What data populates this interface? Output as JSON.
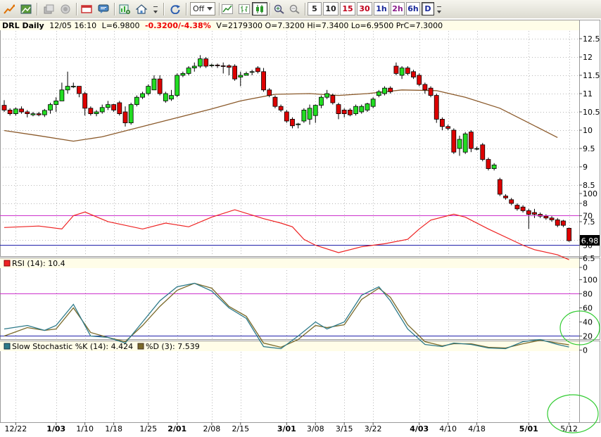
{
  "toolbar": {
    "period_dropdown": "Off",
    "timeframes": [
      "5",
      "10",
      "15",
      "30",
      "1h",
      "2h",
      "6h",
      "D"
    ],
    "selected_timeframe": "D"
  },
  "header": {
    "symbol": "DRL Daily",
    "datetime": "12/05 16:10",
    "last": "L=6.9800",
    "change": "-0.3200/-4.38%",
    "rest": "V=2179300 O=7.3200 Hi=7.3400 Lo=6.9500 PrC=7.3000"
  },
  "colors": {
    "up": "#22dd22",
    "down": "#dd0000",
    "ma": "#8b5a2b",
    "rsi": "#ee2222",
    "overbought": "#cc33cc",
    "oversold": "#2222aa",
    "stoch_k": "#2d7a8a",
    "stoch_d": "#7a6a2a",
    "highlight": "#33cc33"
  },
  "chart_data": [
    {
      "type": "candlestick",
      "title": "DRL Daily",
      "y_ticks": [
        "12.5",
        "12",
        "11.5",
        "11",
        "10.5",
        "10",
        "9.5",
        "9",
        "8.5",
        "8",
        "7.5",
        "7",
        "6.5"
      ],
      "ylim": [
        6.5,
        12.5
      ],
      "last_price_label": "6.98",
      "x_tick_labels": [
        "12/22",
        "1/03",
        "1/10",
        "1/18",
        "1/25",
        "2/01",
        "2/08",
        "2/15",
        "3/01",
        "3/08",
        "3/15",
        "3/22",
        "4/03",
        "4/10",
        "4/18",
        "5/01",
        "5/12"
      ],
      "bold_x_labels": [
        "1/03",
        "2/01",
        "3/01",
        "4/03",
        "5/01"
      ],
      "candles": [
        [
          10.68,
          10.82,
          10.5,
          10.55
        ],
        [
          10.55,
          10.6,
          10.4,
          10.45
        ],
        [
          10.45,
          10.62,
          10.4,
          10.58
        ],
        [
          10.58,
          10.65,
          10.45,
          10.5
        ],
        [
          10.5,
          10.55,
          10.35,
          10.45
        ],
        [
          10.42,
          10.5,
          10.38,
          10.45
        ],
        [
          10.45,
          10.5,
          10.38,
          10.42
        ],
        [
          10.42,
          10.58,
          10.36,
          10.54
        ],
        [
          10.55,
          10.75,
          10.45,
          10.7
        ],
        [
          10.7,
          10.9,
          10.5,
          10.8
        ],
        [
          10.8,
          11.3,
          10.8,
          11.1
        ],
        [
          11.1,
          11.6,
          11.0,
          11.2
        ],
        [
          11.2,
          11.3,
          11.15,
          11.2
        ],
        [
          11.2,
          11.2,
          10.9,
          11.0
        ],
        [
          11.0,
          11.05,
          10.4,
          10.6
        ],
        [
          10.6,
          10.65,
          10.4,
          10.45
        ],
        [
          10.45,
          10.55,
          10.38,
          10.5
        ],
        [
          10.5,
          10.7,
          10.45,
          10.62
        ],
        [
          10.62,
          10.8,
          10.55,
          10.7
        ],
        [
          10.7,
          10.72,
          10.5,
          10.55
        ],
        [
          10.75,
          10.8,
          10.4,
          10.45
        ],
        [
          10.5,
          10.65,
          10.1,
          10.2
        ],
        [
          10.2,
          10.75,
          10.15,
          10.7
        ],
        [
          10.7,
          10.95,
          10.65,
          10.9
        ],
        [
          10.9,
          11.05,
          10.85,
          11.0
        ],
        [
          11.0,
          11.25,
          10.95,
          11.2
        ],
        [
          11.1,
          11.5,
          11.1,
          11.4
        ],
        [
          11.4,
          11.5,
          10.95,
          11.0
        ],
        [
          10.8,
          11.05,
          10.75,
          11.0
        ],
        [
          10.85,
          11.1,
          10.8,
          10.95
        ],
        [
          10.95,
          11.55,
          10.9,
          11.5
        ],
        [
          11.5,
          11.6,
          11.45,
          11.55
        ],
        [
          11.55,
          11.75,
          11.5,
          11.7
        ],
        [
          11.7,
          11.85,
          11.6,
          11.75
        ],
        [
          11.75,
          12.05,
          11.7,
          11.95
        ],
        [
          11.95,
          12.0,
          11.7,
          11.75
        ],
        [
          11.78,
          11.82,
          11.72,
          11.78
        ],
        [
          11.78,
          11.82,
          11.7,
          11.76
        ],
        [
          11.76,
          11.85,
          11.55,
          11.75
        ],
        [
          11.76,
          11.8,
          11.5,
          11.72
        ],
        [
          11.75,
          11.8,
          11.35,
          11.4
        ],
        [
          11.45,
          11.6,
          11.2,
          11.5
        ],
        [
          11.5,
          11.6,
          11.5,
          11.55
        ],
        [
          11.6,
          11.65,
          11.5,
          11.6
        ],
        [
          11.7,
          11.75,
          11.55,
          11.6
        ],
        [
          11.6,
          11.7,
          11.05,
          11.1
        ],
        [
          11.1,
          11.15,
          10.9,
          10.95
        ],
        [
          10.9,
          10.95,
          10.6,
          10.65
        ],
        [
          10.65,
          10.7,
          10.5,
          10.55
        ],
        [
          10.5,
          10.55,
          10.2,
          10.25
        ],
        [
          10.3,
          10.35,
          10.05,
          10.12
        ],
        [
          10.15,
          10.2,
          10.05,
          10.17
        ],
        [
          10.25,
          10.6,
          10.2,
          10.55
        ],
        [
          10.3,
          10.7,
          10.15,
          10.6
        ],
        [
          10.4,
          10.7,
          10.2,
          10.68
        ],
        [
          10.68,
          10.95,
          10.6,
          10.9
        ],
        [
          10.9,
          11.1,
          10.85,
          11.0
        ],
        [
          10.95,
          11.0,
          10.7,
          10.75
        ],
        [
          10.7,
          10.75,
          10.3,
          10.45
        ],
        [
          10.55,
          10.6,
          10.35,
          10.45
        ],
        [
          10.55,
          10.6,
          10.38,
          10.42
        ],
        [
          10.45,
          10.7,
          10.4,
          10.65
        ],
        [
          10.5,
          10.7,
          10.45,
          10.65
        ],
        [
          10.55,
          10.75,
          10.5,
          10.72
        ],
        [
          10.65,
          10.9,
          10.6,
          10.85
        ],
        [
          10.95,
          11.1,
          10.9,
          11.05
        ],
        [
          11.0,
          11.2,
          10.95,
          11.15
        ],
        [
          11.15,
          11.2,
          11.0,
          11.05
        ],
        [
          11.75,
          11.85,
          11.5,
          11.55
        ],
        [
          11.5,
          11.75,
          11.4,
          11.7
        ],
        [
          11.7,
          11.75,
          11.5,
          11.55
        ],
        [
          11.6,
          11.65,
          11.4,
          11.45
        ],
        [
          11.5,
          11.55,
          11.2,
          11.25
        ],
        [
          11.25,
          11.3,
          11.0,
          11.1
        ],
        [
          11.15,
          11.2,
          10.9,
          10.95
        ],
        [
          10.95,
          11.0,
          10.2,
          10.3
        ],
        [
          10.3,
          10.35,
          10.0,
          10.1
        ],
        [
          10.1,
          10.15,
          10.0,
          10.05
        ],
        [
          10.0,
          10.05,
          9.35,
          9.4
        ],
        [
          9.5,
          9.85,
          9.3,
          9.75
        ],
        [
          9.4,
          9.95,
          9.35,
          9.9
        ],
        [
          9.95,
          10.0,
          9.4,
          9.5
        ],
        [
          9.5,
          9.55,
          9.45,
          9.5
        ],
        [
          9.6,
          9.65,
          9.15,
          9.2
        ],
        [
          9.2,
          9.25,
          8.9,
          8.95
        ],
        [
          8.95,
          9.1,
          8.9,
          9.05
        ],
        [
          8.65,
          8.7,
          8.2,
          8.25
        ],
        [
          8.2,
          8.25,
          8.1,
          8.15
        ],
        [
          8.1,
          8.15,
          7.95,
          8.0
        ],
        [
          7.95,
          8.0,
          7.8,
          7.85
        ],
        [
          7.9,
          7.95,
          7.75,
          7.8
        ],
        [
          7.8,
          7.85,
          7.3,
          7.7
        ],
        [
          7.75,
          7.85,
          7.6,
          7.7
        ],
        [
          7.7,
          7.75,
          7.6,
          7.65
        ],
        [
          7.65,
          7.7,
          7.55,
          7.6
        ],
        [
          7.6,
          7.65,
          7.5,
          7.55
        ],
        [
          7.55,
          7.6,
          7.35,
          7.4
        ],
        [
          7.52,
          7.55,
          7.35,
          7.4
        ],
        [
          7.32,
          7.34,
          6.95,
          6.98
        ]
      ],
      "ma": [
        [
          0,
          9.99
        ],
        [
          6,
          9.85
        ],
        [
          12,
          9.7
        ],
        [
          17,
          9.82
        ],
        [
          24,
          10.1
        ],
        [
          30,
          10.34
        ],
        [
          36,
          10.58
        ],
        [
          41,
          10.8
        ],
        [
          47,
          10.98
        ],
        [
          53,
          11.0
        ],
        [
          58,
          10.95
        ],
        [
          63,
          11.0
        ],
        [
          69,
          11.1
        ],
        [
          75,
          11.08
        ],
        [
          80,
          10.9
        ],
        [
          86,
          10.6
        ],
        [
          91,
          10.2
        ],
        [
          96,
          9.8
        ]
      ]
    },
    {
      "type": "line",
      "title": "RSI (14): 10.4",
      "ylim": [
        0,
        100
      ],
      "y_ticks": [
        "100",
        "70",
        "30",
        "0"
      ],
      "y_tick_values": [
        100,
        70,
        30,
        0
      ],
      "reference_lines": [
        70,
        30
      ],
      "x": [
        0,
        6,
        10,
        12,
        14,
        18,
        24,
        28,
        32,
        36,
        40,
        45,
        48,
        50,
        52,
        54,
        58,
        62,
        66,
        70,
        72,
        74,
        78,
        80,
        84,
        90,
        92,
        96,
        98
      ],
      "values": [
        54,
        56,
        52,
        70,
        75,
        62,
        52,
        60,
        55,
        68,
        78,
        66,
        60,
        55,
        38,
        30,
        20,
        28,
        32,
        38,
        52,
        64,
        72,
        68,
        52,
        30,
        24,
        17,
        10.4
      ]
    },
    {
      "type": "line",
      "title": "Slow Stochastic %K (14): 4.424",
      "d_title": "%D (3): 7.539",
      "ylim": [
        0,
        100
      ],
      "y_ticks": [
        "100",
        "80",
        "60",
        "40",
        "20",
        "0"
      ],
      "y_tick_values": [
        100,
        80,
        60,
        40,
        20,
        0
      ],
      "reference_lines": [
        80,
        20
      ],
      "x": [
        0,
        4,
        7,
        9,
        12,
        15,
        18,
        21,
        24,
        27,
        30,
        33,
        36,
        39,
        42,
        45,
        48,
        51,
        54,
        56,
        59,
        62,
        65,
        67,
        70,
        73,
        76,
        78,
        81,
        84,
        87,
        90,
        93,
        96,
        98
      ],
      "k_values": [
        30,
        35,
        28,
        35,
        65,
        20,
        18,
        10,
        40,
        70,
        90,
        95,
        84,
        60,
        45,
        5,
        2,
        20,
        40,
        30,
        40,
        78,
        90,
        70,
        30,
        8,
        5,
        10,
        8,
        3,
        2,
        12,
        15,
        8,
        4.424
      ],
      "d_values": [
        20,
        32,
        28,
        30,
        60,
        25,
        18,
        12,
        35,
        62,
        85,
        95,
        88,
        62,
        48,
        10,
        4,
        15,
        35,
        32,
        36,
        72,
        88,
        75,
        36,
        12,
        6,
        9,
        9,
        4,
        3,
        9,
        14,
        10,
        7.539
      ]
    }
  ]
}
